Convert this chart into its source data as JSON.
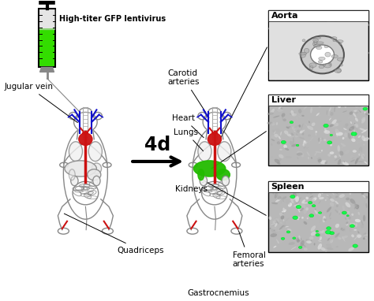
{
  "background_color": "#ffffff",
  "labels": {
    "syringe_label": "High-titer GFP lentivirus",
    "jugular_vein": "Jugular vein",
    "carotid_arteries": "Carotid\narteries",
    "heart": "Heart",
    "lungs": "Lungs",
    "kidneys": "Kidneys",
    "quadriceps": "Quadriceps",
    "femoral_arteries": "Femoral\narteries",
    "gastrocnemius": "Gastrocnemius",
    "time_arrow": "4d",
    "aorta": "Aorta",
    "liver": "Liver",
    "spleen": "Spleen"
  },
  "colors": {
    "body_outline": "#888888",
    "vein_blue": "#1111cc",
    "artery_red": "#cc1111",
    "liver_green": "#22bb00",
    "syringe_green": "#33dd00",
    "black": "#000000",
    "white": "#ffffff",
    "panel_bg": "#c8c8c8",
    "box_border": "#555555",
    "tissue_gray": "#b0b0b0"
  },
  "figsize": [
    4.74,
    3.82
  ],
  "dpi": 100
}
